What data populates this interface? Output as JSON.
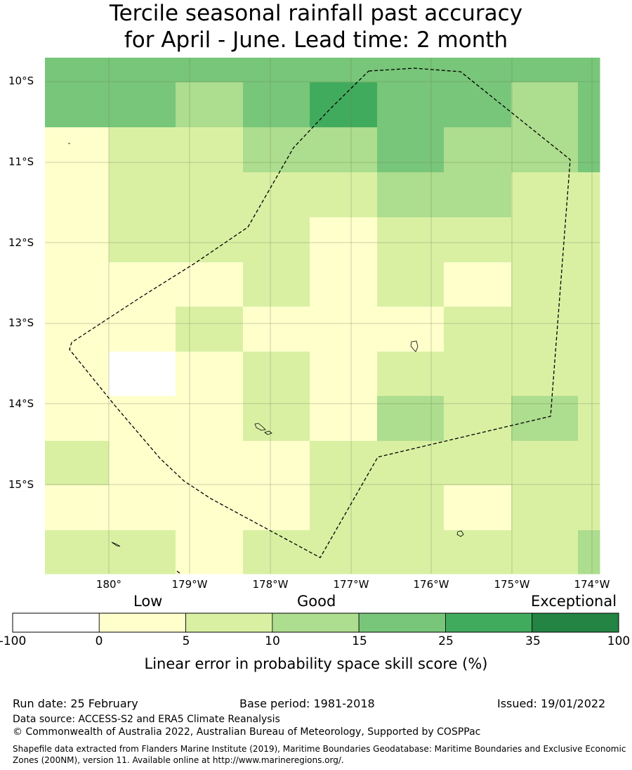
{
  "title": {
    "line1": "Tercile seasonal rainfall past accuracy",
    "line2": "for April - June. Lead time: 2 month"
  },
  "map": {
    "lat_labels": [
      "10°S",
      "11°S",
      "12°S",
      "13°S",
      "14°S",
      "15°S"
    ],
    "lon_labels": [
      "180°",
      "179°W",
      "178°W",
      "177°W",
      "176°W",
      "175°W",
      "174°W"
    ],
    "legend_colors": [
      "#ffffff",
      "#ffffcc",
      "#d9f0a3",
      "#addd8e",
      "#78c679",
      "#41ab5d",
      "#238443"
    ],
    "skill_grid": [
      [
        4,
        4,
        4,
        4,
        4,
        4,
        4,
        4,
        4
      ],
      [
        4,
        4,
        3,
        4,
        5,
        4,
        4,
        3,
        4
      ],
      [
        1,
        2,
        2,
        3,
        3,
        4,
        3,
        3,
        4
      ],
      [
        1,
        2,
        2,
        2,
        2,
        3,
        3,
        2,
        2
      ],
      [
        1,
        2,
        2,
        2,
        1,
        2,
        2,
        2,
        2
      ],
      [
        1,
        1,
        1,
        2,
        1,
        2,
        1,
        2,
        2
      ],
      [
        1,
        1,
        2,
        1,
        1,
        1,
        2,
        2,
        2
      ],
      [
        1,
        0,
        1,
        2,
        1,
        2,
        2,
        2,
        2
      ],
      [
        1,
        1,
        1,
        2,
        1,
        3,
        2,
        3,
        2
      ],
      [
        2,
        1,
        1,
        1,
        2,
        2,
        2,
        2,
        2
      ],
      [
        1,
        1,
        1,
        1,
        2,
        2,
        1,
        2,
        2
      ],
      [
        2,
        2,
        1,
        2,
        2,
        2,
        2,
        2,
        3
      ]
    ]
  },
  "colorbar": {
    "categories": {
      "low": "Low",
      "good": "Good",
      "exceptional": "Exceptional"
    },
    "ticks": [
      "-100",
      "0",
      "5",
      "10",
      "15",
      "25",
      "35",
      "100"
    ],
    "label": "Linear error in probability space skill score (%)"
  },
  "footer": {
    "run_date": "Run date: 25 February",
    "base_period": "Base period: 1981-2018",
    "issued": "Issued: 19/01/2022",
    "data_source": "Data source: ACCESS-S2 and ERA5 Climate Reanalysis",
    "copyright": "© Commonwealth of Australia 2022, Australian Bureau of Meteorology, Supported by COSPPac",
    "shapefile": "Shapefile data extracted from Flanders Marine Institute (2019), Maritime Boundaries Geodatabase: Maritime Boundaries and Exclusive Economic Zones (200NM), version 11. Available online at http://www.marineregions.org/."
  }
}
